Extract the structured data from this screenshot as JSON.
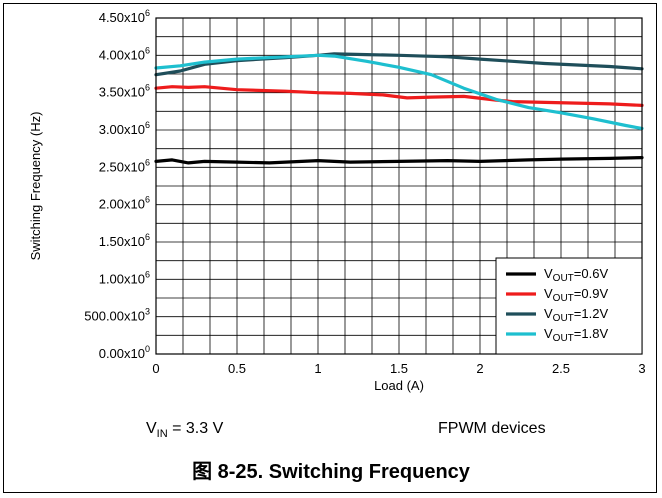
{
  "chart_data": {
    "type": "line",
    "xlabel": "Load (A)",
    "ylabel": "Switching Frequency (Hz)",
    "xlim": [
      0,
      3
    ],
    "ylim": [
      0,
      4500000
    ],
    "x_ticks": [
      "0",
      "0.5",
      "1",
      "1.5",
      "2",
      "2.5",
      "3"
    ],
    "y_ticks": [
      {
        "mant": "4.50x10",
        "exp": "6"
      },
      {
        "mant": "4.00x10",
        "exp": "6"
      },
      {
        "mant": "3.50x10",
        "exp": "6"
      },
      {
        "mant": "3.00x10",
        "exp": "6"
      },
      {
        "mant": "2.50x10",
        "exp": "6"
      },
      {
        "mant": "2.00x10",
        "exp": "6"
      },
      {
        "mant": "1.50x10",
        "exp": "6"
      },
      {
        "mant": "1.00x10",
        "exp": "6"
      },
      {
        "mant": "500.00x10",
        "exp": "3"
      },
      {
        "mant": "0.00x10",
        "exp": "0"
      }
    ],
    "grid": true,
    "legend_position": "bottom-right",
    "series": [
      {
        "name": "VOUT=0.6V",
        "label_main": "V",
        "label_sub": "OUT",
        "label_rest": "=0.6V",
        "color": "#000000",
        "points": [
          [
            0,
            2580000
          ],
          [
            0.1,
            2600000
          ],
          [
            0.2,
            2560000
          ],
          [
            0.3,
            2580000
          ],
          [
            0.5,
            2570000
          ],
          [
            0.7,
            2560000
          ],
          [
            1.0,
            2590000
          ],
          [
            1.2,
            2570000
          ],
          [
            1.5,
            2580000
          ],
          [
            1.8,
            2590000
          ],
          [
            2.0,
            2580000
          ],
          [
            2.3,
            2600000
          ],
          [
            2.5,
            2610000
          ],
          [
            2.8,
            2620000
          ],
          [
            3.0,
            2630000
          ]
        ]
      },
      {
        "name": "VOUT=0.9V",
        "label_main": "V",
        "label_sub": "OUT",
        "label_rest": "=0.9V",
        "color": "#ee1c1c",
        "points": [
          [
            0,
            3560000
          ],
          [
            0.1,
            3580000
          ],
          [
            0.2,
            3570000
          ],
          [
            0.3,
            3580000
          ],
          [
            0.5,
            3540000
          ],
          [
            0.8,
            3520000
          ],
          [
            1.0,
            3500000
          ],
          [
            1.2,
            3490000
          ],
          [
            1.4,
            3470000
          ],
          [
            1.55,
            3430000
          ],
          [
            1.7,
            3440000
          ],
          [
            1.9,
            3450000
          ],
          [
            2.1,
            3400000
          ],
          [
            2.2,
            3380000
          ],
          [
            2.4,
            3370000
          ],
          [
            2.6,
            3360000
          ],
          [
            2.8,
            3350000
          ],
          [
            3.0,
            3330000
          ]
        ]
      },
      {
        "name": "VOUT=1.2V",
        "label_main": "V",
        "label_sub": "OUT",
        "label_rest": "=1.2V",
        "color": "#1f4e5a",
        "points": [
          [
            0,
            3740000
          ],
          [
            0.15,
            3790000
          ],
          [
            0.3,
            3880000
          ],
          [
            0.5,
            3930000
          ],
          [
            0.8,
            3970000
          ],
          [
            1.0,
            4000000
          ],
          [
            1.1,
            4020000
          ],
          [
            1.3,
            4010000
          ],
          [
            1.5,
            4000000
          ],
          [
            1.8,
            3980000
          ],
          [
            2.0,
            3950000
          ],
          [
            2.2,
            3920000
          ],
          [
            2.4,
            3890000
          ],
          [
            2.6,
            3870000
          ],
          [
            2.8,
            3850000
          ],
          [
            3.0,
            3820000
          ]
        ]
      },
      {
        "name": "VOUT=1.8V",
        "label_main": "V",
        "label_sub": "OUT",
        "label_rest": "=1.8V",
        "color": "#1ebfcf",
        "points": [
          [
            0,
            3830000
          ],
          [
            0.15,
            3860000
          ],
          [
            0.3,
            3910000
          ],
          [
            0.5,
            3950000
          ],
          [
            0.8,
            3980000
          ],
          [
            1.0,
            4000000
          ],
          [
            1.1,
            3990000
          ],
          [
            1.3,
            3920000
          ],
          [
            1.5,
            3840000
          ],
          [
            1.7,
            3740000
          ],
          [
            1.9,
            3560000
          ],
          [
            2.1,
            3410000
          ],
          [
            2.3,
            3300000
          ],
          [
            2.5,
            3230000
          ],
          [
            2.7,
            3150000
          ],
          [
            2.9,
            3060000
          ],
          [
            3.0,
            3020000
          ]
        ]
      }
    ]
  },
  "notes": {
    "vin_main": "V",
    "vin_sub": "IN",
    "vin_rest": " = 3.3 V",
    "devices": "FPWM devices"
  },
  "caption": {
    "prefix": "图",
    "text": " 8-25. Switching Frequency"
  }
}
